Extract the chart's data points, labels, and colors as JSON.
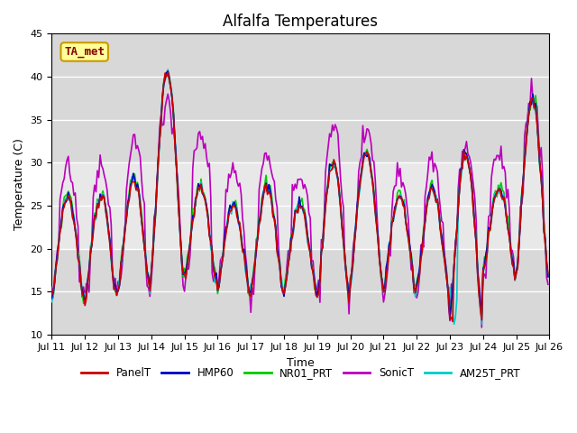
{
  "title": "Alfalfa Temperatures",
  "xlabel": "Time",
  "ylabel": "Temperature (C)",
  "ylim": [
    10,
    45
  ],
  "xlim": [
    0,
    360
  ],
  "shaded_band_lo": 20,
  "shaded_band_hi": 30,
  "series_colors": {
    "PanelT": "#cc0000",
    "HMP60": "#0000cc",
    "NR01_PRT": "#00cc00",
    "SonicT": "#bb00bb",
    "AM25T_PRT": "#00cccc"
  },
  "series_order": [
    "SonicT",
    "NR01_PRT",
    "AM25T_PRT",
    "HMP60",
    "PanelT"
  ],
  "legend_order": [
    "PanelT",
    "HMP60",
    "NR01_PRT",
    "SonicT",
    "AM25T_PRT"
  ],
  "xtick_labels": [
    "Jul 11",
    "Jul 12",
    "Jul 13",
    "Jul 14",
    "Jul 15",
    "Jul 16",
    "Jul 17",
    "Jul 18",
    "Jul 19",
    "Jul 20",
    "Jul 21",
    "Jul 22",
    "Jul 23",
    "Jul 24",
    "Jul 25",
    "Jul 26"
  ],
  "xtick_positions": [
    0,
    24,
    48,
    72,
    96,
    120,
    144,
    168,
    192,
    216,
    240,
    264,
    288,
    312,
    336,
    360
  ],
  "ytick_positions": [
    10,
    15,
    20,
    25,
    30,
    35,
    40,
    45
  ],
  "annotation_text": "TA_met",
  "annotation_color": "#880000",
  "annotation_bg": "#ffff99",
  "annotation_edge": "#cc9900",
  "plot_bg": "#d8d8d8",
  "band_color": "#e8e8e8",
  "fig_bg": "#ffffff",
  "linewidth": 1.2,
  "title_fontsize": 12,
  "axis_fontsize": 9,
  "tick_fontsize": 8
}
